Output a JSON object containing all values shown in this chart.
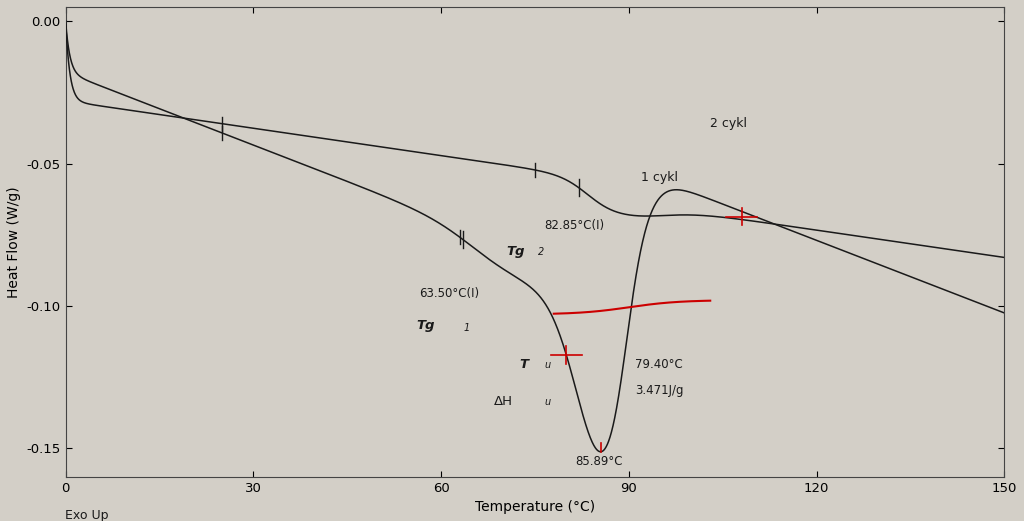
{
  "xlim": [
    0,
    150
  ],
  "ylim": [
    -0.16,
    0.005
  ],
  "yticks": [
    0.0,
    -0.05,
    -0.1,
    -0.15
  ],
  "xticks": [
    0,
    30,
    60,
    90,
    120,
    150
  ],
  "xlabel": "Temperature (°C)",
  "ylabel": "Heat Flow (W/g)",
  "exo_label": "Exo Up",
  "bg_color": "#d3cfc7",
  "plot_bg_color": "#d3cfc7",
  "line_color": "#1a1a1a",
  "red_color": "#cc0000",
  "label_1cykl": "1 cykl",
  "label_2cykl": "2 cykl",
  "ann_tg1": "Tg",
  "ann_tg2": "Tg",
  "ann_tu": "T",
  "ann_dhu": "ΔH",
  "ann_tg1_temp": "63.50°C(I)",
  "ann_tg2_temp": "82.85°C(I)",
  "ann_peak_temp": "85.89°C",
  "ann_peak_val1": "79.40°C",
  "ann_peak_val2": "3.471J/g"
}
